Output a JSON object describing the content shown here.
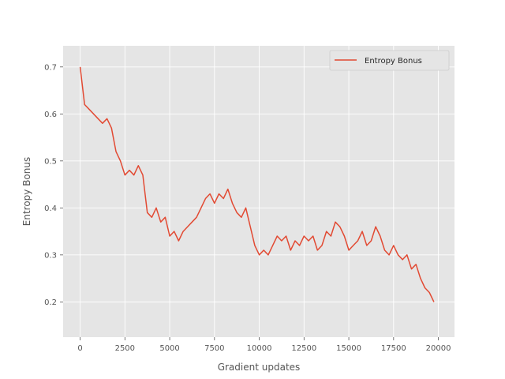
{
  "chart_data": {
    "type": "line",
    "title": "",
    "xlabel": "Gradient updates",
    "ylabel": "Entropy Bonus",
    "xlim": [
      -950,
      20900
    ],
    "ylim": [
      0.125,
      0.745
    ],
    "xticks": [
      0,
      2500,
      5000,
      7500,
      10000,
      12500,
      15000,
      17500,
      20000
    ],
    "xtick_labels": [
      "0",
      "2500",
      "5000",
      "7500",
      "10000",
      "12500",
      "15000",
      "17500",
      "20000"
    ],
    "yticks": [
      0.2,
      0.3,
      0.4,
      0.5,
      0.6,
      0.7
    ],
    "ytick_labels": [
      "0.2",
      "0.3",
      "0.4",
      "0.5",
      "0.6",
      "0.7"
    ],
    "grid": true,
    "legend_position": "top-right",
    "series": [
      {
        "name": "Entropy Bonus",
        "color": "#E24A33",
        "x": [
          0,
          250,
          500,
          750,
          1000,
          1250,
          1500,
          1750,
          2000,
          2250,
          2500,
          2750,
          3000,
          3250,
          3500,
          3750,
          4000,
          4250,
          4500,
          4750,
          5000,
          5250,
          5500,
          5750,
          6000,
          6250,
          6500,
          6750,
          7000,
          7250,
          7500,
          7750,
          8000,
          8250,
          8500,
          8750,
          9000,
          9250,
          9500,
          9750,
          10000,
          10250,
          10500,
          10750,
          11000,
          11250,
          11500,
          11750,
          12000,
          12250,
          12500,
          12750,
          13000,
          13250,
          13500,
          13750,
          14000,
          14250,
          14500,
          14750,
          15000,
          15250,
          15500,
          15750,
          16000,
          16250,
          16500,
          16750,
          17000,
          17250,
          17500,
          17750,
          18000,
          18250,
          18500,
          18750,
          19000,
          19250,
          19500,
          19750
        ],
        "values": [
          0.7,
          0.62,
          0.61,
          0.6,
          0.59,
          0.58,
          0.59,
          0.57,
          0.52,
          0.5,
          0.47,
          0.48,
          0.47,
          0.49,
          0.47,
          0.39,
          0.38,
          0.4,
          0.37,
          0.38,
          0.34,
          0.35,
          0.33,
          0.35,
          0.36,
          0.37,
          0.38,
          0.4,
          0.42,
          0.43,
          0.41,
          0.43,
          0.42,
          0.44,
          0.41,
          0.39,
          0.38,
          0.4,
          0.36,
          0.32,
          0.3,
          0.31,
          0.3,
          0.32,
          0.34,
          0.33,
          0.34,
          0.31,
          0.33,
          0.32,
          0.34,
          0.33,
          0.34,
          0.31,
          0.32,
          0.35,
          0.34,
          0.37,
          0.36,
          0.34,
          0.31,
          0.32,
          0.33,
          0.35,
          0.32,
          0.33,
          0.36,
          0.34,
          0.31,
          0.3,
          0.32,
          0.3,
          0.29,
          0.3,
          0.27,
          0.28,
          0.25,
          0.23,
          0.22,
          0.2
        ]
      }
    ]
  }
}
